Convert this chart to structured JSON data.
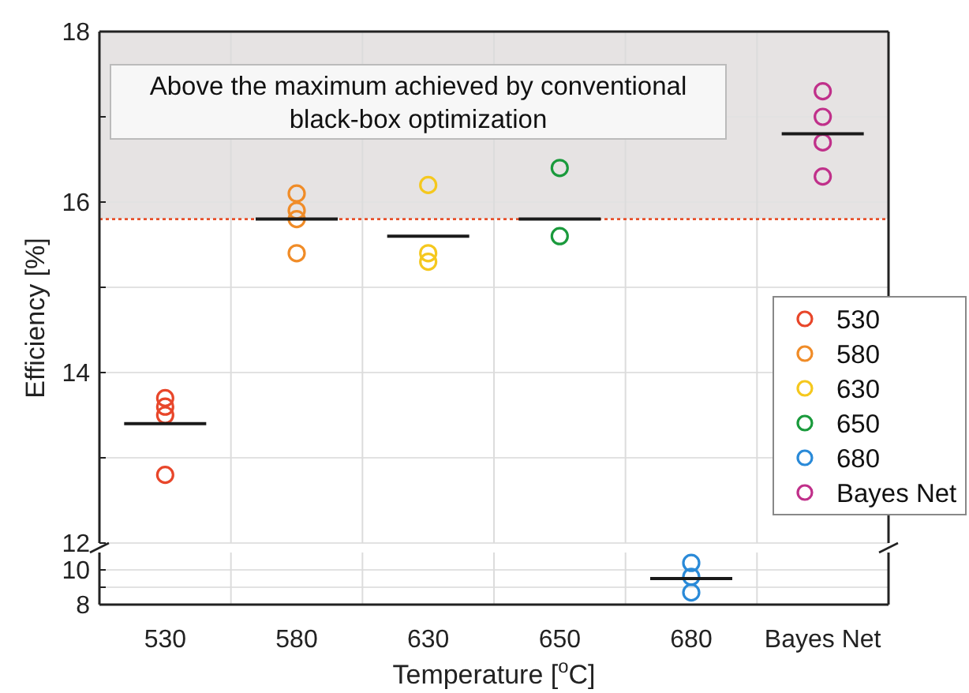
{
  "chart_data": [
    {
      "type": "scatter",
      "ylabel": "Efficiency [%]",
      "categories": [
        "530",
        "580",
        "630",
        "650",
        "680",
        "Bayes Net"
      ],
      "ylim": [
        12,
        18
      ],
      "yticks": [
        12,
        {
          "value": 13,
          "label": null
        },
        14,
        {
          "value": 15,
          "label": null
        },
        16,
        {
          "value": 17,
          "label": null
        },
        18
      ],
      "grid": true,
      "tick_labels": "y",
      "legend": "right",
      "marker": "circle",
      "bands": [
        {
          "axis": "y",
          "from": 15.8,
          "to": 18,
          "label": "Above the maximum achieved by conventional\nblack-box optimization",
          "color": "#e6e3e3"
        }
      ],
      "ref_lines": [
        {
          "axis": "y",
          "value": 15.8,
          "color": "#e8502a",
          "line_style": "dotted"
        }
      ],
      "series": [
        {
          "name": "530",
          "color": "#e8462a",
          "x": [
            "530",
            "530",
            "530",
            "530"
          ],
          "values": [
            13.7,
            13.6,
            13.5,
            12.8
          ]
        },
        {
          "name": "580",
          "color": "#f08c28",
          "x": [
            "580",
            "580",
            "580",
            "580"
          ],
          "values": [
            16.1,
            15.9,
            15.8,
            15.4
          ]
        },
        {
          "name": "630",
          "color": "#f5c81e",
          "x": [
            "630",
            "630",
            "630"
          ],
          "values": [
            16.2,
            15.4,
            15.3
          ]
        },
        {
          "name": "650",
          "color": "#1a9a3c",
          "x": [
            "650",
            "650"
          ],
          "values": [
            16.4,
            15.6
          ]
        },
        {
          "name": "680",
          "color": "#2a8ad8",
          "values": [
            null,
            null,
            null,
            null,
            null,
            null
          ]
        },
        {
          "name": "Bayes Net",
          "color": "#c0308a",
          "x": [
            "Bayes Net",
            "Bayes Net",
            "Bayes Net",
            "Bayes Net"
          ],
          "values": [
            17.3,
            17.0,
            16.7,
            16.3
          ]
        },
        {
          "type": "box",
          "color": "#1a1a1a",
          "boxes": [
            {
              "low": 13.4,
              "q1": 13.4,
              "median": 13.4,
              "q3": 13.4,
              "high": 13.4
            },
            {
              "low": 15.8,
              "q1": 15.8,
              "median": 15.8,
              "q3": 15.8,
              "high": 15.8
            },
            {
              "low": 15.6,
              "q1": 15.6,
              "median": 15.6,
              "q3": 15.6,
              "high": 15.6
            },
            {
              "low": 15.8,
              "q1": 15.8,
              "median": 15.8,
              "q3": 15.8,
              "high": 15.8
            },
            null,
            {
              "low": 16.8,
              "q1": 16.8,
              "median": 16.8,
              "q3": 16.8,
              "high": 16.8
            }
          ]
        }
      ]
    },
    {
      "type": "scatter",
      "xlabel": "Temperature [$^{o}$C]",
      "categories": [
        "530",
        "580",
        "630",
        "650",
        "680",
        "Bayes Net"
      ],
      "ylim": [
        8,
        11
      ],
      "yticks": [
        8,
        {
          "value": 9,
          "label": null
        },
        10
      ],
      "grid": true,
      "marker": "circle",
      "series": [
        {
          "color": "#2a8ad8",
          "x": [
            "680",
            "680",
            "680"
          ],
          "values": [
            10.4,
            9.6,
            8.7
          ]
        },
        {
          "type": "box",
          "color": "#1a1a1a",
          "boxes": [
            null,
            null,
            null,
            null,
            {
              "low": 9.5,
              "q1": 9.5,
              "median": 9.5,
              "q3": 9.5,
              "high": 9.5
            },
            null
          ]
        }
      ]
    }
  ]
}
